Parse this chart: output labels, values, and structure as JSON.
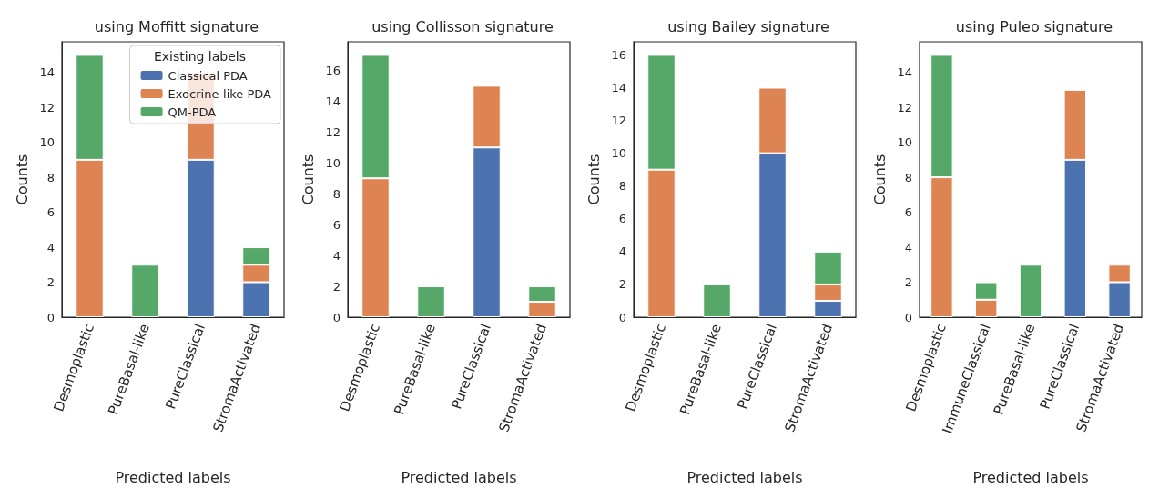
{
  "chart_data": [
    {
      "type": "bar",
      "title": "using Moffitt signature",
      "xlabel": "Predicted labels",
      "ylabel": "Counts",
      "legend_title": "Existing labels",
      "legend": "top right",
      "stacked": true,
      "grid": false,
      "categories": [
        "Desmoplastic",
        "PureBasal-like",
        "PureClassical",
        "StromaActivated"
      ],
      "ylim": [
        0,
        15.75
      ],
      "yticks": [
        0,
        2,
        4,
        6,
        8,
        10,
        12,
        14
      ],
      "series": [
        {
          "name": "Classical PDA",
          "color": "#4c72b0",
          "values": [
            0,
            0,
            9,
            2
          ]
        },
        {
          "name": "Exocrine-like PDA",
          "color": "#dd8452",
          "values": [
            9,
            0,
            5,
            1
          ]
        },
        {
          "name": "QM-PDA",
          "color": "#55a868",
          "values": [
            6,
            3,
            0,
            1
          ]
        }
      ]
    },
    {
      "type": "bar",
      "title": "using Collisson signature",
      "xlabel": "Predicted labels",
      "ylabel": "Counts",
      "stacked": true,
      "grid": false,
      "categories": [
        "Desmoplastic",
        "PureBasal-like",
        "PureClassical",
        "StromaActivated"
      ],
      "ylim": [
        0,
        17.85
      ],
      "yticks": [
        0,
        2,
        4,
        6,
        8,
        10,
        12,
        14,
        16
      ],
      "series": [
        {
          "color": "#4c72b0",
          "values": [
            0,
            0,
            11,
            0
          ]
        },
        {
          "color": "#dd8452",
          "values": [
            9,
            0,
            4,
            1
          ]
        },
        {
          "color": "#55a868",
          "values": [
            8,
            2,
            0,
            1
          ]
        }
      ]
    },
    {
      "type": "bar",
      "title": "using Bailey signature",
      "xlabel": "Predicted labels",
      "ylabel": "Counts",
      "stacked": true,
      "grid": false,
      "categories": [
        "Desmoplastic",
        "PureBasal-like",
        "PureClassical",
        "StromaActivated"
      ],
      "ylim": [
        0,
        16.8
      ],
      "yticks": [
        0,
        2,
        4,
        6,
        8,
        10,
        12,
        14,
        16
      ],
      "series": [
        {
          "color": "#4c72b0",
          "values": [
            0,
            0,
            10,
            1
          ]
        },
        {
          "color": "#dd8452",
          "values": [
            9,
            0,
            4,
            1
          ]
        },
        {
          "color": "#55a868",
          "values": [
            7,
            2,
            0,
            2
          ]
        }
      ]
    },
    {
      "type": "bar",
      "title": "using Puleo signature",
      "xlabel": "Predicted labels",
      "ylabel": "Counts",
      "stacked": true,
      "grid": false,
      "categories": [
        "Desmoplastic",
        "ImmuneClassical",
        "PureBasal-like",
        "PureClassical",
        "StromaActivated"
      ],
      "ylim": [
        0,
        15.75
      ],
      "yticks": [
        0,
        2,
        4,
        6,
        8,
        10,
        12,
        14
      ],
      "series": [
        {
          "color": "#4c72b0",
          "values": [
            0,
            0,
            0,
            9,
            2
          ]
        },
        {
          "color": "#dd8452",
          "values": [
            8,
            1,
            0,
            4,
            1
          ]
        },
        {
          "color": "#55a868",
          "values": [
            7,
            1,
            3,
            0,
            0
          ]
        }
      ]
    }
  ]
}
